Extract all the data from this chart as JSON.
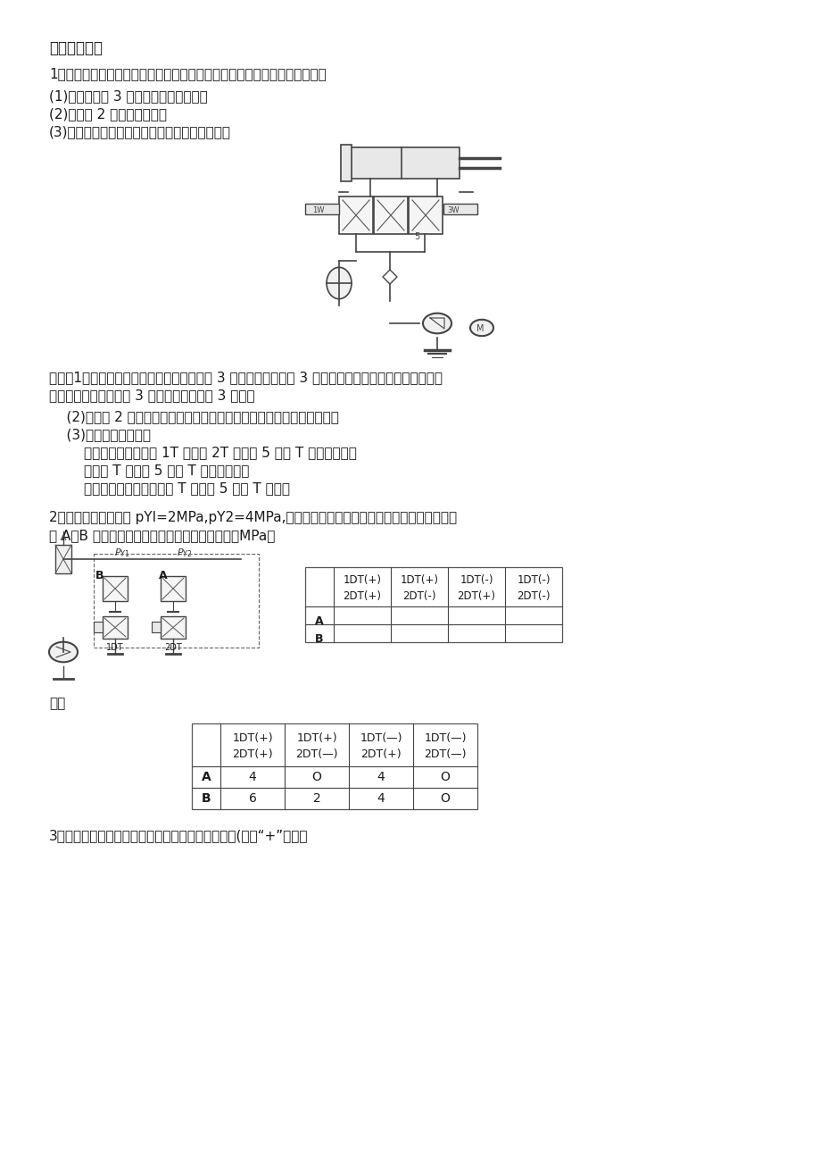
{
  "bg_color": "#ffffff",
  "text_color": "#1a1a1a",
  "page_width": 9.2,
  "page_height": 13.01,
  "title": "六、同路分析",
  "q1": "1、下图所示液压系统是采用蓄能器实现快速运动的回路，试回答下列问题：",
  "q1a": "(1)液控顺序阀 3 何时开启，何时关闭？",
  "q1b": "(2)单向阀 2 的作用是什么？",
  "q1c": "(3)分析活塞向右运动时的进油路线和回油路线。",
  "ans1a1": "答：（1）当蓄能器内的油压达到液控顺序阀 3 的调定压力时，阀 3 被打开，使液压泵厕荷。当蓄能器内",
  "ans1a2": "的油压低于液控顺序阀 3 的调定压力时，阀 3 关闭。",
  "ans1b": "    (2)单向阀 2 的作用是防止液压泵厕荷时蓄能器内的油液向液压泵倒流。",
  "ans1c": "    (3)活塞向右运动时：",
  "ans1d": "        进油路线为：液压泵 1T 单向阀 2T 换向阀 5 左位 T 油缸无杆腿。",
  "ans1e": "        蓄能器 T 换向阀 5 左位 T 油缸无杆腿。",
  "ans1f": "        回油路线为：油缸有杆腿 T 换向阀 5 左位 T 油筱。",
  "q2a": "2、在图示回路中，如 pYI=2MPa,pY2=4MPa,厕荷时的各种压力损失均可忽略不计，试列表表",
  "q2b": "示 A、B 两点处在不同工况下的压力値。（单位：MPa）",
  "sol": "解：",
  "q3": "3、如图所示的液压回路，试列出电磁铁动作顺序表(通电“+”，失电",
  "t1_col0": "",
  "t1_col1l1": "1DT(+)",
  "t1_col1l2": "2DT(+)",
  "t1_col2l1": "1DT(+)",
  "t1_col2l2": "2DT(-)",
  "t1_col3l1": "1DT(-)",
  "t1_col3l2": "2DT(+)",
  "t1_col4l1": "1DT(-)",
  "t1_col4l2": "2DT(-)",
  "t1_rowA": "A",
  "t1_rowB": "B",
  "t2_col1l1": "1DT(+)",
  "t2_col1l2": "2DT(+)",
  "t2_col2l1": "1DT(+)",
  "t2_col2l2": "2DT(—)",
  "t2_col3l1": "1DT(—)",
  "t2_col3l2": "2DT(+)",
  "t2_col4l1": "1DT(—)",
  "t2_col4l2": "2DT(—)",
  "t2_A1": "4",
  "t2_A2": "O",
  "t2_A3": "4",
  "t2_A4": "O",
  "t2_B1": "6",
  "t2_B2": "2",
  "t2_B3": "4",
  "t2_B4": "O"
}
